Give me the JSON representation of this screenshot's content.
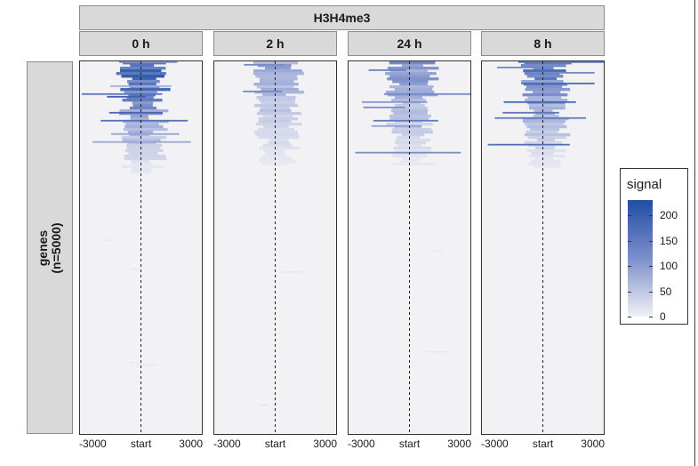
{
  "chart_data": {
    "type": "heatmap",
    "title": "H3H4me3",
    "row_label": "genes\n(n=5000)",
    "panels": [
      {
        "label": "0 h",
        "intensity": 1.0
      },
      {
        "label": "2 h",
        "intensity": 0.45
      },
      {
        "label": "24 h",
        "intensity": 0.55
      },
      {
        "label": "8 h",
        "intensity": 0.75
      }
    ],
    "x_ticks": [
      "-3000",
      "start",
      "3000"
    ],
    "x_range": [
      -3000,
      3000
    ],
    "n_genes": 5000,
    "legend": {
      "title": "signal",
      "ticks": [
        200,
        150,
        100,
        50,
        0
      ],
      "range": [
        0,
        230
      ],
      "color_high": "#1f4ea4",
      "color_low": "#f0f0f5",
      "position": "right"
    },
    "reference_line": "start",
    "grid": false
  }
}
